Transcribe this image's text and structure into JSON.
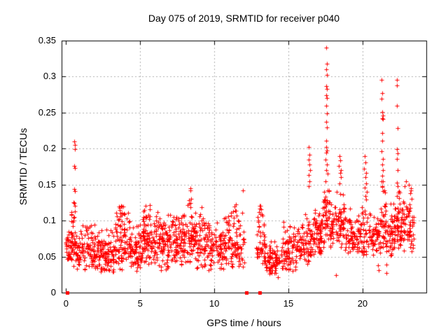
{
  "chart_data": {
    "type": "scatter",
    "title": "Day 075 of 2019, SRMTID for receiver p040",
    "xlabel": "GPS time / hours",
    "ylabel": "SRMTID / TECUs",
    "xlim": [
      -0.3,
      24.3
    ],
    "ylim": [
      0,
      0.35
    ],
    "xtick_values": [
      0,
      5,
      10,
      15,
      20
    ],
    "xtick_labels": [
      "0",
      "5",
      "10",
      "15",
      "20"
    ],
    "ytick_values": [
      0,
      0.05,
      0.1,
      0.15,
      0.2,
      0.25,
      0.3,
      0.35
    ],
    "ytick_labels": [
      "0",
      "0.05",
      "0.1",
      "0.15",
      "0.2",
      "0.25",
      "0.3",
      "0.35"
    ],
    "grid": true,
    "grid_color": "#b0b0b0",
    "border_color": "#000000",
    "legend": "none",
    "series": [
      {
        "name": "SRMTID",
        "marker": "plus",
        "color": "#ff0000"
      }
    ],
    "marker": "plus",
    "marker_color": "#ff0000",
    "marker_size": 7,
    "seed": 20190075,
    "zero_points_x": [
      0.1,
      12.15,
      13.05
    ],
    "outliers": [
      [
        0.56,
        0.21
      ],
      [
        0.6,
        0.205
      ],
      [
        0.58,
        0.199
      ],
      [
        0.57,
        0.176
      ],
      [
        0.6,
        0.173
      ],
      [
        0.57,
        0.144
      ],
      [
        0.6,
        0.141
      ],
      [
        0.57,
        0.124
      ],
      [
        0.61,
        0.121
      ],
      [
        11.93,
        0.142
      ],
      [
        14.3,
        0.021
      ],
      [
        18.2,
        0.024
      ],
      [
        16.38,
        0.202
      ],
      [
        16.42,
        0.192
      ],
      [
        16.35,
        0.185
      ],
      [
        16.4,
        0.178
      ],
      [
        16.45,
        0.17
      ],
      [
        16.38,
        0.163
      ],
      [
        16.42,
        0.155
      ],
      [
        16.36,
        0.148
      ],
      [
        17.55,
        0.34
      ],
      [
        17.58,
        0.318
      ],
      [
        17.56,
        0.31
      ],
      [
        17.6,
        0.302
      ],
      [
        17.54,
        0.287
      ],
      [
        17.58,
        0.283
      ],
      [
        17.55,
        0.274
      ],
      [
        17.59,
        0.27
      ],
      [
        17.56,
        0.26
      ],
      [
        17.6,
        0.249
      ],
      [
        17.55,
        0.237
      ],
      [
        17.58,
        0.229
      ],
      [
        17.54,
        0.211
      ],
      [
        17.57,
        0.202
      ],
      [
        17.6,
        0.197
      ],
      [
        17.56,
        0.194
      ],
      [
        17.52,
        0.185
      ],
      [
        17.58,
        0.178
      ],
      [
        17.55,
        0.17
      ],
      [
        17.62,
        0.165
      ],
      [
        18.45,
        0.19
      ],
      [
        18.5,
        0.184
      ],
      [
        18.42,
        0.176
      ],
      [
        18.55,
        0.17
      ],
      [
        18.48,
        0.166
      ],
      [
        18.52,
        0.16
      ],
      [
        18.46,
        0.152
      ],
      [
        20.15,
        0.19
      ],
      [
        20.2,
        0.181
      ],
      [
        20.12,
        0.172
      ],
      [
        20.25,
        0.166
      ],
      [
        20.18,
        0.16
      ],
      [
        20.22,
        0.152
      ],
      [
        20.15,
        0.146
      ],
      [
        20.28,
        0.14
      ],
      [
        20.2,
        0.134
      ],
      [
        20.24,
        0.129
      ],
      [
        21.05,
        0.038
      ],
      [
        21.1,
        0.031
      ],
      [
        21.6,
        0.039
      ],
      [
        21.62,
        0.027
      ],
      [
        21.3,
        0.296
      ],
      [
        21.34,
        0.277
      ],
      [
        21.3,
        0.269
      ],
      [
        21.33,
        0.251
      ],
      [
        21.36,
        0.246
      ],
      [
        21.32,
        0.242
      ],
      [
        21.35,
        0.241
      ],
      [
        21.31,
        0.222
      ],
      [
        21.34,
        0.211
      ],
      [
        21.3,
        0.196
      ],
      [
        21.36,
        0.186
      ],
      [
        21.32,
        0.178
      ],
      [
        21.35,
        0.17
      ],
      [
        21.31,
        0.162
      ],
      [
        21.37,
        0.155
      ],
      [
        21.33,
        0.148
      ],
      [
        22.3,
        0.296
      ],
      [
        22.34,
        0.288
      ],
      [
        22.3,
        0.26
      ],
      [
        22.36,
        0.228
      ],
      [
        22.32,
        0.199
      ],
      [
        22.35,
        0.193
      ],
      [
        22.31,
        0.186
      ],
      [
        22.37,
        0.17
      ],
      [
        22.33,
        0.153
      ],
      [
        22.36,
        0.148
      ],
      [
        22.85,
        0.148
      ],
      [
        22.95,
        0.155
      ],
      [
        23.1,
        0.15
      ],
      [
        23.25,
        0.145
      ]
    ],
    "density_bands": [
      [
        0.0,
        0.6,
        55,
        0.035,
        0.105
      ],
      [
        0.3,
        0.65,
        12,
        0.08,
        0.13
      ],
      [
        0.6,
        1.3,
        48,
        0.03,
        0.1
      ],
      [
        1.3,
        2.3,
        85,
        0.03,
        0.105
      ],
      [
        2.3,
        3.3,
        85,
        0.025,
        0.095
      ],
      [
        3.3,
        4.3,
        90,
        0.03,
        0.125
      ],
      [
        3.5,
        3.9,
        10,
        0.1,
        0.142
      ],
      [
        4.3,
        5.1,
        70,
        0.03,
        0.1
      ],
      [
        5.1,
        6.1,
        90,
        0.035,
        0.125
      ],
      [
        5.2,
        5.7,
        10,
        0.1,
        0.14
      ],
      [
        6.1,
        7.1,
        90,
        0.03,
        0.12
      ],
      [
        7.1,
        8.1,
        90,
        0.035,
        0.12
      ],
      [
        8.1,
        8.7,
        55,
        0.04,
        0.13
      ],
      [
        8.3,
        8.5,
        6,
        0.12,
        0.152
      ],
      [
        8.7,
        9.7,
        85,
        0.03,
        0.125
      ],
      [
        9.7,
        10.7,
        80,
        0.03,
        0.11
      ],
      [
        10.7,
        12.05,
        95,
        0.035,
        0.115
      ],
      [
        11.1,
        11.5,
        8,
        0.1,
        0.135
      ],
      [
        12.8,
        13.4,
        42,
        0.04,
        0.12
      ],
      [
        12.95,
        13.25,
        8,
        0.1,
        0.138
      ],
      [
        13.4,
        14.6,
        85,
        0.025,
        0.08
      ],
      [
        14.6,
        15.6,
        80,
        0.03,
        0.1
      ],
      [
        15.6,
        16.6,
        80,
        0.04,
        0.115
      ],
      [
        16.6,
        17.4,
        78,
        0.05,
        0.13
      ],
      [
        17.4,
        17.8,
        45,
        0.07,
        0.16
      ],
      [
        17.8,
        18.8,
        80,
        0.06,
        0.145
      ],
      [
        18.8,
        19.9,
        82,
        0.05,
        0.12
      ],
      [
        19.9,
        21.2,
        92,
        0.05,
        0.125
      ],
      [
        21.2,
        21.6,
        40,
        0.06,
        0.165
      ],
      [
        21.6,
        22.2,
        55,
        0.05,
        0.13
      ],
      [
        22.2,
        22.6,
        45,
        0.06,
        0.155
      ],
      [
        22.6,
        23.45,
        75,
        0.055,
        0.15
      ]
    ]
  }
}
